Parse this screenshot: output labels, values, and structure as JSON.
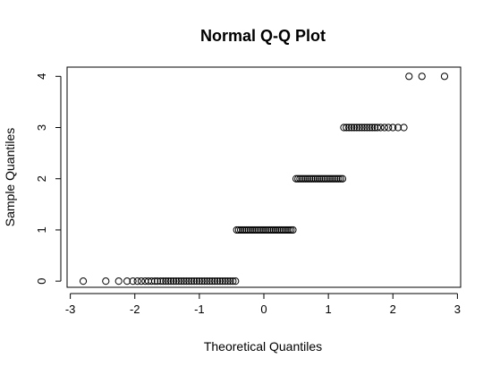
{
  "chart_data": {
    "type": "scatter",
    "title": "Normal Q-Q Plot",
    "xlabel": "Theoretical Quantiles",
    "ylabel": "Sample Quantiles",
    "xlim": [
      -3.05,
      3.05
    ],
    "ylim": [
      -0.12,
      4.18
    ],
    "xticks": [
      -3,
      -2,
      -1,
      0,
      1,
      2,
      3
    ],
    "yticks": [
      0,
      1,
      2,
      3,
      4
    ],
    "xtick_labels": [
      "-3",
      "-2",
      "-1",
      "0",
      "1",
      "2",
      "3"
    ],
    "ytick_labels": [
      "0",
      "1",
      "2",
      "3",
      "4"
    ],
    "grid": false,
    "legend": "none",
    "marker": "open-circle",
    "series": [
      {
        "y": 0,
        "x": [
          -2.8,
          -2.45,
          -2.25,
          -2.12,
          -2.03,
          -1.96,
          -1.9,
          -1.84,
          -1.79,
          -1.74,
          -1.69,
          -1.65,
          -1.6,
          -1.56,
          -1.52,
          -1.48,
          -1.44,
          -1.4,
          -1.36,
          -1.32,
          -1.28,
          -1.24,
          -1.2,
          -1.16,
          -1.12,
          -1.08,
          -1.04,
          -1.0,
          -0.96,
          -0.92,
          -0.88,
          -0.84,
          -0.8,
          -0.76,
          -0.72,
          -0.68,
          -0.64,
          -0.6,
          -0.56,
          -0.52,
          -0.48,
          -0.44
        ]
      },
      {
        "y": 1,
        "x": [
          -0.42,
          -0.39,
          -0.36,
          -0.33,
          -0.3,
          -0.27,
          -0.24,
          -0.21,
          -0.18,
          -0.15,
          -0.12,
          -0.09,
          -0.06,
          -0.03,
          0.0,
          0.03,
          0.06,
          0.09,
          0.12,
          0.15,
          0.18,
          0.21,
          0.24,
          0.27,
          0.3,
          0.33,
          0.36,
          0.39,
          0.42,
          0.45
        ]
      },
      {
        "y": 2,
        "x": [
          0.5,
          0.53,
          0.56,
          0.59,
          0.62,
          0.65,
          0.68,
          0.71,
          0.74,
          0.77,
          0.8,
          0.83,
          0.86,
          0.89,
          0.92,
          0.95,
          0.98,
          1.01,
          1.04,
          1.07,
          1.1,
          1.13,
          1.16,
          1.19,
          1.22
        ]
      },
      {
        "y": 3,
        "x": [
          1.24,
          1.28,
          1.32,
          1.36,
          1.4,
          1.44,
          1.48,
          1.52,
          1.56,
          1.6,
          1.64,
          1.68,
          1.72,
          1.76,
          1.81,
          1.87,
          1.93,
          2.0,
          2.08,
          2.17
        ]
      },
      {
        "y": 4,
        "x": [
          2.25,
          2.45,
          2.8
        ]
      }
    ]
  },
  "colors": {
    "axis": "#000000",
    "point_stroke": "#000000",
    "background": "#ffffff"
  }
}
